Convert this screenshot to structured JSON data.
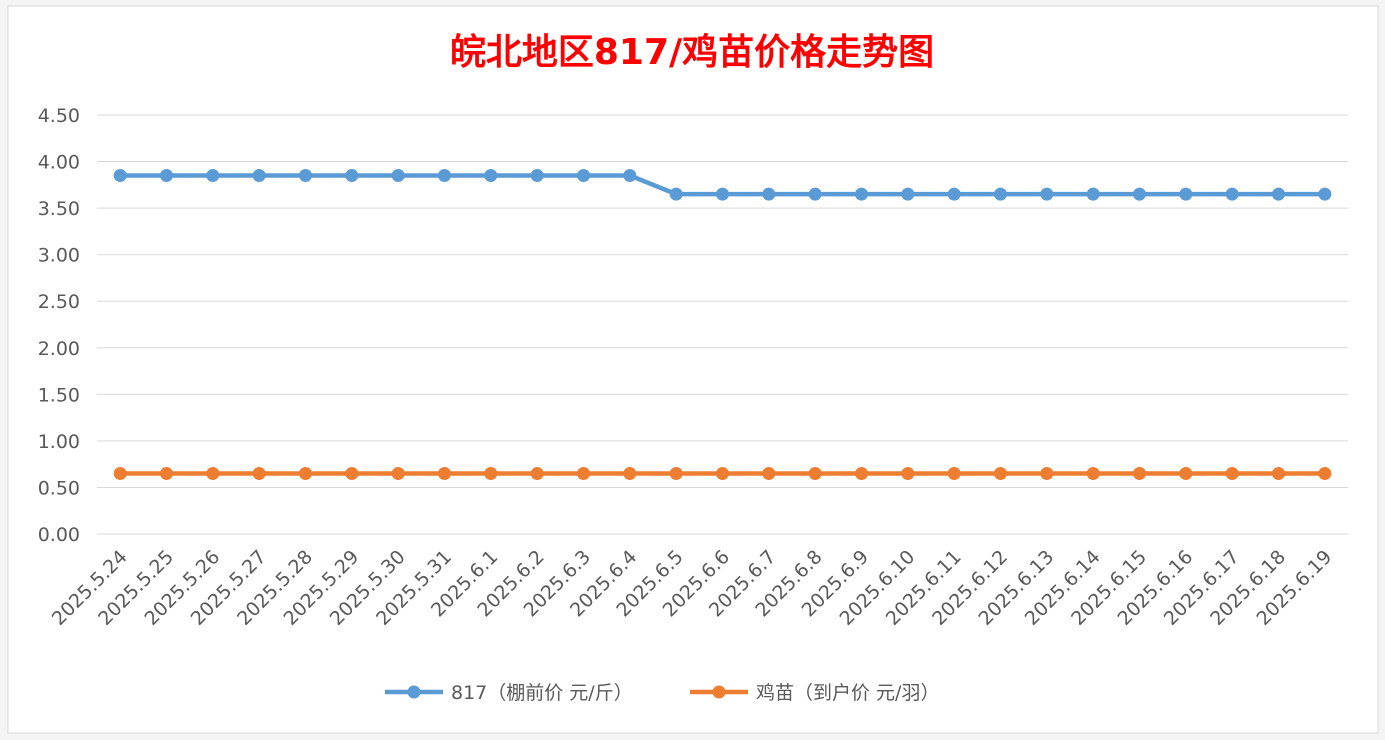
{
  "chart_data": {
    "type": "line",
    "title": "皖北地区817/鸡苗价格走势图",
    "xlabel": "",
    "ylabel": "",
    "ylim": [
      0,
      4.5
    ],
    "yticks": [
      "0.00",
      "0.50",
      "1.00",
      "1.50",
      "2.00",
      "2.50",
      "3.00",
      "3.50",
      "4.00",
      "4.50"
    ],
    "categories": [
      "2025.5.24",
      "2025.5.25",
      "2025.5.26",
      "2025.5.27",
      "2025.5.28",
      "2025.5.29",
      "2025.5.30",
      "2025.5.31",
      "2025.6.1",
      "2025.6.2",
      "2025.6.3",
      "2025.6.4",
      "2025.6.5",
      "2025.6.6",
      "2025.6.7",
      "2025.6.8",
      "2025.6.9",
      "2025.6.10",
      "2025.6.11",
      "2025.6.12",
      "2025.6.13",
      "2025.6.14",
      "2025.6.15",
      "2025.6.16",
      "2025.6.17",
      "2025.6.18",
      "2025.6.19"
    ],
    "series": [
      {
        "name": "817（棚前价 元/斤）",
        "color": "#5b9bd5",
        "values": [
          3.85,
          3.85,
          3.85,
          3.85,
          3.85,
          3.85,
          3.85,
          3.85,
          3.85,
          3.85,
          3.85,
          3.85,
          3.65,
          3.65,
          3.65,
          3.65,
          3.65,
          3.65,
          3.65,
          3.65,
          3.65,
          3.65,
          3.65,
          3.65,
          3.65,
          3.65,
          3.65
        ]
      },
      {
        "name": "鸡苗（到户价 元/羽）",
        "color": "#ed7d31",
        "values": [
          0.65,
          0.65,
          0.65,
          0.65,
          0.65,
          0.65,
          0.65,
          0.65,
          0.65,
          0.65,
          0.65,
          0.65,
          0.65,
          0.65,
          0.65,
          0.65,
          0.65,
          0.65,
          0.65,
          0.65,
          0.65,
          0.65,
          0.65,
          0.65,
          0.65,
          0.65,
          0.65
        ]
      }
    ],
    "grid": true,
    "legend_position": "bottom"
  }
}
